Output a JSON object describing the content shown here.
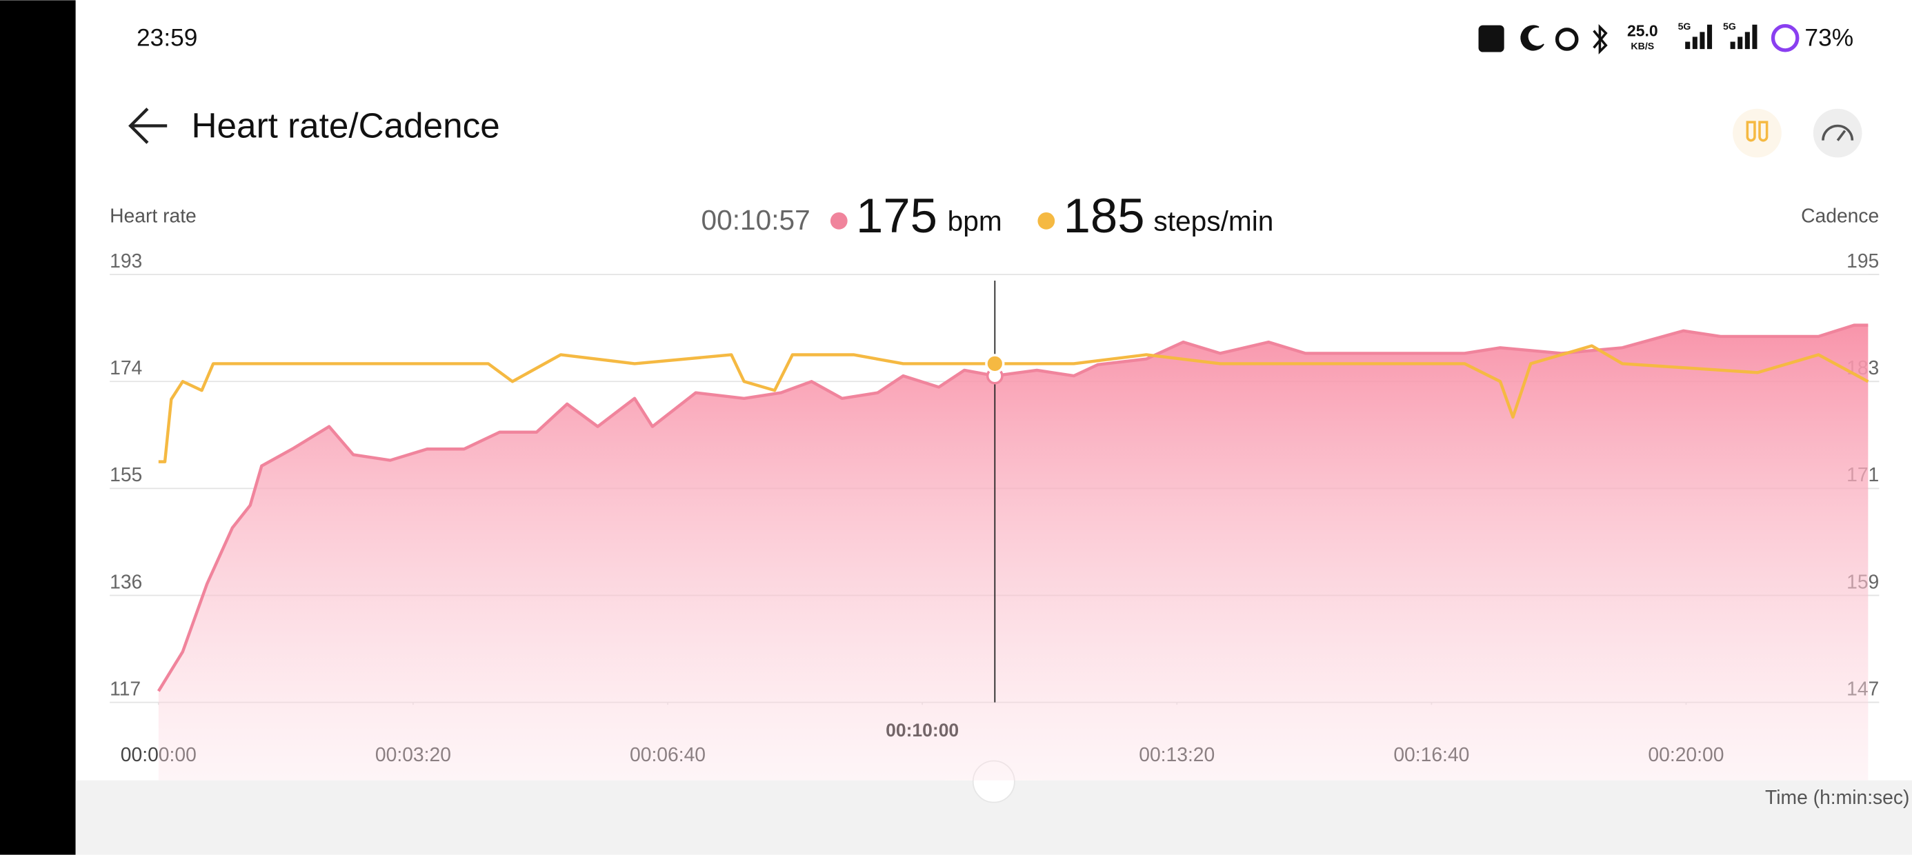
{
  "status_bar": {
    "time": "23:59",
    "speed": "25.0",
    "speed_unit": "KB/S",
    "net1": "5G",
    "net2": "5G",
    "battery": "73%"
  },
  "header": {
    "title": "Heart rate/Cadence"
  },
  "chart_data": {
    "type": "line",
    "ylabel": "Heart rate",
    "y2label": "Cadence",
    "xlabel": "Time (h:min:sec)",
    "xlim": [
      0,
      1343
    ],
    "xticks": [
      {
        "value": 0,
        "label": "00:00:00"
      },
      {
        "value": 200,
        "label": "00:03:20"
      },
      {
        "value": 400,
        "label": "00:06:40"
      },
      {
        "value": 600,
        "label": "00:10:00"
      },
      {
        "value": 800,
        "label": "00:13:20"
      },
      {
        "value": 1000,
        "label": "00:16:40"
      },
      {
        "value": 1200,
        "label": "00:20:00"
      }
    ],
    "ylim": [
      117,
      193
    ],
    "yticks": [
      117,
      136,
      155,
      174,
      193
    ],
    "y2lim": [
      147,
      195
    ],
    "y2ticks": [
      147,
      159,
      171,
      183,
      195
    ],
    "grid": true,
    "series": [
      {
        "color": "#f0849c",
        "area": true,
        "x": [
          0,
          19,
          38,
          58,
          72,
          81,
          105,
          134,
          153,
          182,
          211,
          240,
          268,
          297,
          321,
          345,
          374,
          388,
          422,
          460,
          489,
          513,
          537,
          565,
          585,
          613,
          633,
          657,
          690,
          719,
          738,
          776,
          805,
          834,
          872,
          901,
          930,
          978,
          1026,
          1054,
          1102,
          1150,
          1198,
          1227,
          1265,
          1304,
          1332,
          1343
        ],
        "values": [
          119,
          126,
          138,
          148,
          152,
          159,
          162,
          166,
          161,
          160,
          162,
          162,
          165,
          165,
          170,
          166,
          171,
          166,
          172,
          171,
          172,
          174,
          171,
          172,
          175,
          173,
          176,
          175,
          176,
          175,
          177,
          178,
          181,
          179,
          181,
          179,
          179,
          179,
          179,
          180,
          179,
          180,
          183,
          182,
          182,
          182,
          184,
          184
        ]
      },
      {
        "color": "#f5b942",
        "axis": "y2",
        "x": [
          0,
          5,
          10,
          19,
          34,
          43,
          105,
          163,
          259,
          278,
          316,
          374,
          450,
          460,
          484,
          498,
          546,
          585,
          657,
          719,
          776,
          834,
          930,
          1026,
          1054,
          1064,
          1078,
          1126,
          1150,
          1256,
          1304,
          1343
        ],
        "values": [
          174,
          174,
          181,
          183,
          182,
          185,
          185,
          185,
          185,
          183,
          186,
          185,
          186,
          183,
          182,
          186,
          186,
          185,
          185,
          185,
          186,
          185,
          185,
          185,
          183,
          179,
          185,
          187,
          185,
          184,
          186,
          183
        ]
      }
    ],
    "cursor": {
      "label": "00:10:57",
      "x": 657,
      "values": [
        175,
        185
      ],
      "units": [
        "bpm",
        "steps/min"
      ]
    }
  }
}
